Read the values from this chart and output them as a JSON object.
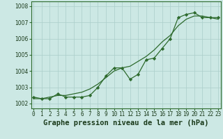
{
  "title": "Graphe pression niveau de la mer (hPa)",
  "x_labels": [
    "0",
    "1",
    "2",
    "3",
    "4",
    "5",
    "6",
    "7",
    "8",
    "9",
    "10",
    "11",
    "12",
    "13",
    "14",
    "15",
    "16",
    "17",
    "18",
    "19",
    "20",
    "21",
    "22",
    "23"
  ],
  "hours": [
    0,
    1,
    2,
    3,
    4,
    5,
    6,
    7,
    8,
    9,
    10,
    11,
    12,
    13,
    14,
    15,
    16,
    17,
    18,
    19,
    20,
    21,
    22,
    23
  ],
  "series1": [
    1002.4,
    1002.3,
    1002.3,
    1002.6,
    1002.4,
    1002.4,
    1002.4,
    1002.5,
    1003.0,
    1003.7,
    1004.2,
    1004.2,
    1003.5,
    1003.8,
    1004.7,
    1004.8,
    1005.4,
    1006.0,
    1007.3,
    1007.5,
    1007.6,
    1007.3,
    1007.3,
    1007.3
  ],
  "smooth": [
    1002.3,
    1002.3,
    1002.4,
    1002.5,
    1002.5,
    1002.6,
    1002.7,
    1002.9,
    1003.2,
    1003.6,
    1004.0,
    1004.2,
    1004.3,
    1004.6,
    1004.9,
    1005.3,
    1005.8,
    1006.2,
    1006.8,
    1007.2,
    1007.4,
    1007.4,
    1007.3,
    1007.2
  ],
  "ylim": [
    1001.7,
    1008.3
  ],
  "yticks": [
    1002,
    1003,
    1004,
    1005,
    1006,
    1007,
    1008
  ],
  "line_color": "#2d6a2d",
  "bg_color": "#cce8e4",
  "grid_color": "#aaceca",
  "marker": "D",
  "marker_size": 2.2,
  "title_fontsize": 7.5,
  "tick_fontsize": 5.5
}
